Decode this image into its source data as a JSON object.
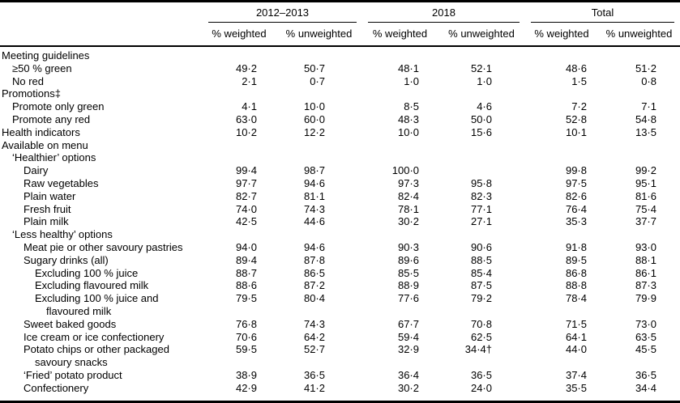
{
  "table": {
    "col_groups": [
      {
        "label": "2012–2013"
      },
      {
        "label": "2018"
      },
      {
        "label": "Total"
      }
    ],
    "sub_headers": [
      "% weighted",
      "% unweighted",
      "% weighted",
      "% unweighted",
      "% weighted",
      "% unweighted"
    ],
    "rows": [
      {
        "label": "Meeting guidelines",
        "indent": 0,
        "values": []
      },
      {
        "label": "≥50 % green",
        "indent": 1,
        "values": [
          "49·2",
          "50·7",
          "48·1",
          "52·1",
          "48·6",
          "51·2"
        ]
      },
      {
        "label": "No red",
        "indent": 1,
        "values": [
          "2·1",
          "0·7",
          "1·0",
          "1·0",
          "1·5",
          "0·8"
        ]
      },
      {
        "label": "Promotions‡",
        "indent": 0,
        "values": []
      },
      {
        "label": "Promote only green",
        "indent": 1,
        "values": [
          "4·1",
          "10·0",
          "8·5",
          "4·6",
          "7·2",
          "7·1"
        ]
      },
      {
        "label": "Promote any red",
        "indent": 1,
        "values": [
          "63·0",
          "60·0",
          "48·3",
          "50·0",
          "52·8",
          "54·8"
        ]
      },
      {
        "label": "Health indicators",
        "indent": 0,
        "values": [
          "10·2",
          "12·2",
          "10·0",
          "15·6",
          "10·1",
          "13·5"
        ]
      },
      {
        "label": "Available on menu",
        "indent": 0,
        "values": []
      },
      {
        "label": "‘Healthier’ options",
        "indent": 1,
        "values": []
      },
      {
        "label": "Dairy",
        "indent": 2,
        "values": [
          "99·4",
          "98·7",
          "100·0",
          "",
          "99·8",
          "99·2"
        ]
      },
      {
        "label": "Raw vegetables",
        "indent": 2,
        "values": [
          "97·7",
          "94·6",
          "97·3",
          "95·8",
          "97·5",
          "95·1"
        ]
      },
      {
        "label": "Plain water",
        "indent": 2,
        "values": [
          "82·7",
          "81·1",
          "82·4",
          "82·3",
          "82·6",
          "81·6"
        ]
      },
      {
        "label": "Fresh fruit",
        "indent": 2,
        "values": [
          "74·0",
          "74·3",
          "78·1",
          "77·1",
          "76·4",
          "75·4"
        ]
      },
      {
        "label": "Plain milk",
        "indent": 2,
        "values": [
          "42·5",
          "44·6",
          "30·2",
          "27·1",
          "35·3",
          "37·7"
        ]
      },
      {
        "label": "‘Less healthy’ options",
        "indent": 1,
        "values": []
      },
      {
        "label": "Meat pie or other savoury pastries",
        "indent": 2,
        "values": [
          "94·0",
          "94·6",
          "90·3",
          "90·6",
          "91·8",
          "93·0"
        ]
      },
      {
        "label": "Sugary drinks (all)",
        "indent": 2,
        "values": [
          "89·4",
          "87·8",
          "89·6",
          "88·5",
          "89·5",
          "88·1"
        ]
      },
      {
        "label": "Excluding 100 % juice",
        "indent": 3,
        "values": [
          "88·7",
          "86·5",
          "85·5",
          "85·4",
          "86·8",
          "86·1"
        ]
      },
      {
        "label": "Excluding flavoured milk",
        "indent": 3,
        "values": [
          "88·6",
          "87·2",
          "88·9",
          "87·5",
          "88·8",
          "87·3"
        ]
      },
      {
        "label": "Excluding 100 % juice and\nflavoured milk",
        "indent": 3,
        "values": [
          "79·5",
          "80·4",
          "77·6",
          "79·2",
          "78·4",
          "79·9"
        ]
      },
      {
        "label": "Sweet baked goods",
        "indent": 2,
        "values": [
          "76·8",
          "74·3",
          "67·7",
          "70·8",
          "71·5",
          "73·0"
        ]
      },
      {
        "label": "Ice cream or ice confectionery",
        "indent": 2,
        "values": [
          "70·6",
          "64·2",
          "59·4",
          "62·5",
          "64·1",
          "63·5"
        ]
      },
      {
        "label": "Potato chips or other packaged\nsavoury snacks",
        "indent": 2,
        "values": [
          "59·5",
          "52·7",
          "32·9",
          "34·4†",
          "44·0",
          "45·5"
        ]
      },
      {
        "label": "‘Fried’ potato product",
        "indent": 2,
        "values": [
          "38·9",
          "36·5",
          "36·4",
          "36·5",
          "37·4",
          "36·5"
        ]
      },
      {
        "label": "Confectionery",
        "indent": 2,
        "values": [
          "42·9",
          "41·2",
          "30·2",
          "24·0",
          "35·5",
          "34·4"
        ]
      }
    ]
  }
}
